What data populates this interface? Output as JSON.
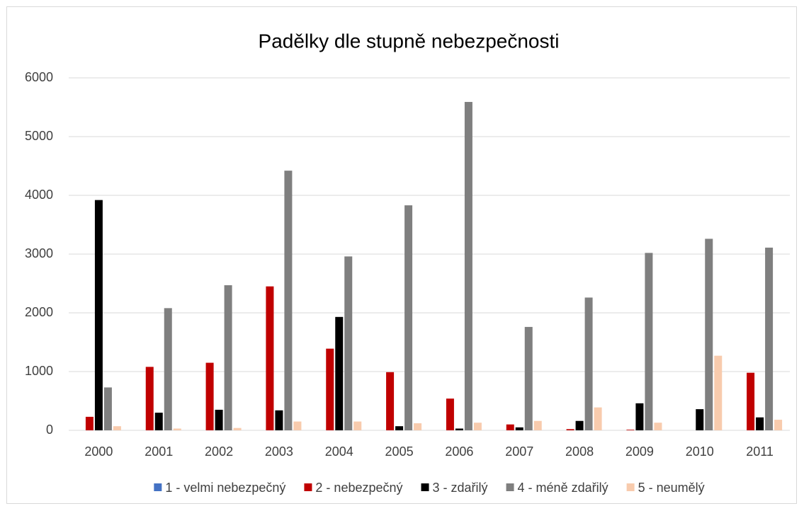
{
  "chart_data": {
    "type": "bar",
    "title": "Padělky dle stupně nebezpečnosti",
    "categories": [
      "2000",
      "2001",
      "2002",
      "2003",
      "2004",
      "2005",
      "2006",
      "2007",
      "2008",
      "2009",
      "2010",
      "2011"
    ],
    "series": [
      {
        "name": "1 - velmi nebezpečný",
        "color": "#4472c4",
        "values": [
          0,
          0,
          0,
          0,
          0,
          0,
          0,
          0,
          0,
          0,
          0,
          0
        ]
      },
      {
        "name": "2 - nebezpečný",
        "color": "#c00000",
        "values": [
          230,
          1080,
          1150,
          2450,
          1390,
          990,
          540,
          100,
          20,
          10,
          0,
          980
        ]
      },
      {
        "name": "3 - zdařilý",
        "color": "#000000",
        "values": [
          3920,
          300,
          350,
          340,
          1930,
          70,
          30,
          50,
          160,
          460,
          360,
          220
        ]
      },
      {
        "name": "4 - méně zdařilý",
        "color": "#7f7f7f",
        "values": [
          730,
          2080,
          2470,
          4420,
          2960,
          3830,
          5590,
          1760,
          2260,
          3020,
          3260,
          3110
        ]
      },
      {
        "name": "5 - neumělý",
        "color": "#f8cbad",
        "values": [
          70,
          30,
          40,
          150,
          150,
          120,
          130,
          160,
          390,
          130,
          1270,
          180
        ]
      }
    ],
    "ylim": [
      0,
      6000
    ],
    "yticks": [
      0,
      1000,
      2000,
      3000,
      4000,
      5000,
      6000
    ],
    "grid": true,
    "legend": "bottom"
  }
}
